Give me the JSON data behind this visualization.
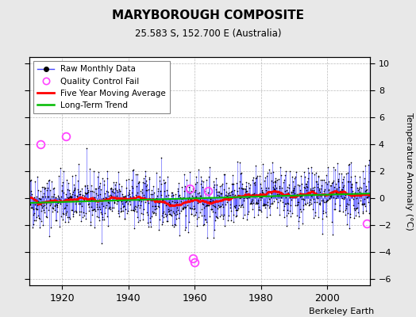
{
  "title": "MARYBOROUGH COMPOSITE",
  "subtitle": "25.583 S, 152.700 E (Australia)",
  "ylabel": "Temperature Anomaly (°C)",
  "credit": "Berkeley Earth",
  "year_start": 1910,
  "year_end": 2013,
  "ylim": [
    -6.5,
    10.5
  ],
  "yticks": [
    -6,
    -4,
    -2,
    0,
    2,
    4,
    6,
    8,
    10
  ],
  "xticks": [
    1920,
    1940,
    1960,
    1980,
    2000
  ],
  "bg_color": "#e8e8e8",
  "plot_bg_color": "#ffffff",
  "raw_line_color": "#4444ff",
  "raw_marker_color": "#000000",
  "qc_fail_color": "#ff44ff",
  "moving_avg_color": "#ff0000",
  "trend_color": "#00bb00",
  "seed": 42,
  "noise_std": 1.0,
  "qc_years": [
    1913.5,
    1921.0,
    1958.5,
    1959.5,
    1960.0,
    1964.0,
    2012.0
  ],
  "qc_vals": [
    4.0,
    4.6,
    0.7,
    -4.5,
    -4.8,
    0.5,
    -1.9
  ]
}
